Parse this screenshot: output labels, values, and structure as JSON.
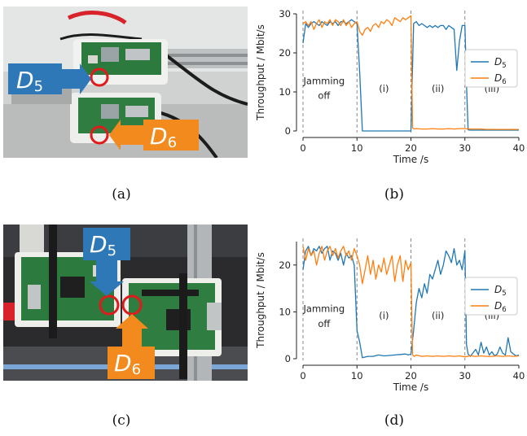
{
  "captions": {
    "a": "(a)",
    "b": "(b)",
    "c": "(c)",
    "d": "(d)"
  },
  "photos": {
    "a": {
      "labels": [
        {
          "base": "D",
          "sub": "5",
          "color": "#2f78b7"
        },
        {
          "base": "D",
          "sub": "6",
          "color": "#f28a1e"
        }
      ]
    },
    "c": {
      "labels": [
        {
          "base": "D",
          "sub": "5",
          "color": "#2f78b7"
        },
        {
          "base": "D",
          "sub": "6",
          "color": "#f28a1e"
        }
      ]
    }
  },
  "colors": {
    "d5": "#1f77b4",
    "d6": "#ff7f0e",
    "marker": "#e01b1b"
  },
  "chart_data": [
    {
      "type": "line",
      "panel": "b",
      "xlabel": "Time /s",
      "ylabel": "Throughput / Mbit/s",
      "xlim": [
        0,
        40
      ],
      "ylim": [
        0,
        30
      ],
      "xticks": [
        0,
        10,
        20,
        30,
        40
      ],
      "yticks": [
        0,
        10,
        20,
        30
      ],
      "vlines": [
        0,
        10,
        20,
        30
      ],
      "annotations": [
        {
          "text": "Jamming",
          "x": 3.9,
          "y": 12.0
        },
        {
          "text": "off",
          "x": 3.9,
          "y": 8.2
        },
        {
          "text": "(i)",
          "x": 15.0,
          "y": 10.0
        },
        {
          "text": "(ii)",
          "x": 25.0,
          "y": 10.0
        },
        {
          "text": "(iii)",
          "x": 35.0,
          "y": 10.0
        }
      ],
      "legend": {
        "position": "right",
        "entries": [
          {
            "base": "D",
            "sub": "5"
          },
          {
            "base": "D",
            "sub": "6"
          }
        ]
      },
      "series": [
        {
          "key": "d5",
          "x": [
            0,
            0.5,
            1,
            1.5,
            2,
            2.5,
            3,
            3.5,
            4,
            4.5,
            5,
            5.5,
            6,
            6.5,
            7,
            7.5,
            8,
            8.5,
            9,
            9.5,
            10,
            10.5,
            11,
            12,
            13,
            14,
            15,
            16,
            17,
            18,
            19,
            19.5,
            20,
            20.5,
            21,
            21.5,
            22,
            22.5,
            23,
            23.5,
            24,
            24.5,
            25,
            25.5,
            26,
            26.5,
            27,
            27.5,
            28,
            28.5,
            29,
            29.5,
            30,
            30.3,
            30.6,
            31,
            32,
            33,
            34,
            35,
            36,
            37,
            38,
            39,
            40
          ],
          "y": [
            22.5,
            27.5,
            26.5,
            27.5,
            28,
            27.5,
            27,
            28,
            27.5,
            27,
            28,
            27.5,
            28,
            27,
            28,
            28,
            27.5,
            28,
            28.5,
            28,
            27.5,
            15,
            0,
            0,
            0,
            0,
            0,
            0,
            0,
            0,
            0,
            0,
            0,
            27.5,
            28,
            27,
            27.5,
            27,
            26.5,
            27,
            26.5,
            27,
            26.5,
            27,
            27,
            26,
            27,
            26.5,
            26,
            15.5,
            23,
            27,
            27,
            12,
            0.3,
            0.2,
            0.2,
            0.2,
            0.2,
            0.2,
            0.2,
            0.2,
            0.2,
            0.2,
            0.2
          ]
        },
        {
          "key": "d6",
          "x": [
            0,
            0.5,
            1,
            1.5,
            2,
            2.5,
            3,
            3.5,
            4,
            4.5,
            5,
            5.5,
            6,
            6.5,
            7,
            7.5,
            8,
            8.5,
            9,
            9.5,
            10,
            10.5,
            11,
            11.5,
            12,
            12.5,
            13,
            13.5,
            14,
            14.5,
            15,
            15.5,
            16,
            16.5,
            17,
            17.5,
            18,
            18.5,
            19,
            19.5,
            20,
            20.3,
            20.6,
            21,
            22,
            23,
            24,
            25,
            26,
            27,
            28,
            29,
            30,
            31,
            32,
            33,
            34,
            35,
            36,
            37,
            38,
            39,
            40
          ],
          "y": [
            27.5,
            28,
            27,
            28,
            26,
            27.5,
            28.5,
            26.5,
            28,
            27.5,
            28.5,
            27,
            28.5,
            28,
            27,
            28.5,
            27,
            28,
            26.5,
            27.5,
            28,
            25.5,
            24.5,
            26,
            26.5,
            25.5,
            27,
            27.5,
            26.5,
            28,
            27.5,
            28.5,
            28,
            27,
            29,
            28.5,
            28,
            29,
            28.5,
            29,
            29.5,
            0.8,
            0.5,
            0.6,
            0.5,
            0.5,
            0.6,
            0.5,
            0.5,
            0.6,
            0.5,
            0.6,
            0.6,
            0.5,
            0.5,
            0.5,
            0.4,
            0.4,
            0.4,
            0.4,
            0.4,
            0.4,
            0.4
          ]
        }
      ]
    },
    {
      "type": "line",
      "panel": "d",
      "xlabel": "Time /s",
      "ylabel": "Throughput / Mbit/s",
      "xlim": [
        0,
        40
      ],
      "ylim": [
        0,
        25
      ],
      "xticks": [
        0,
        10,
        20,
        30,
        40
      ],
      "yticks": [
        0,
        10,
        20
      ],
      "vlines": [
        0,
        10,
        20,
        30
      ],
      "annotations": [
        {
          "text": "Jamming",
          "x": 3.9,
          "y": 10.0
        },
        {
          "text": "off",
          "x": 3.9,
          "y": 6.8
        },
        {
          "text": "(i)",
          "x": 15.0,
          "y": 8.5
        },
        {
          "text": "(ii)",
          "x": 25.0,
          "y": 8.5
        },
        {
          "text": "(iii)",
          "x": 35.0,
          "y": 8.5
        }
      ],
      "legend": {
        "position": "right",
        "entries": [
          {
            "base": "D",
            "sub": "5"
          },
          {
            "base": "D",
            "sub": "6"
          }
        ]
      },
      "series": [
        {
          "key": "d5",
          "x": [
            0,
            0.5,
            1,
            1.5,
            2,
            2.5,
            3,
            3.5,
            4,
            4.5,
            5,
            5.5,
            6,
            6.5,
            7,
            7.5,
            8,
            8.5,
            9,
            9.5,
            10,
            10.5,
            11,
            12,
            13,
            14,
            15,
            16,
            17,
            18,
            19,
            19.5,
            20,
            20.5,
            21,
            21.5,
            22,
            22.5,
            23,
            23.5,
            24,
            24.5,
            25,
            25.5,
            26,
            26.5,
            27,
            27.5,
            28,
            28.5,
            29,
            29.5,
            30,
            30.3,
            30.6,
            31,
            32,
            32.5,
            33,
            33.5,
            34,
            34.5,
            35,
            35.5,
            36,
            36.5,
            37,
            37.5,
            38,
            38.5,
            39,
            39.5,
            40
          ],
          "y": [
            19,
            23,
            24,
            22,
            23.5,
            23,
            24,
            22.5,
            23.5,
            24,
            21,
            23,
            22.5,
            21,
            22.5,
            20,
            22.5,
            21.5,
            22,
            20,
            6,
            3.5,
            0.2,
            0.5,
            0.5,
            0.8,
            0.6,
            0.7,
            0.8,
            0.9,
            1.0,
            0.8,
            1.0,
            6,
            12,
            15,
            13,
            16,
            14,
            18,
            17,
            19,
            21,
            18,
            20,
            23,
            22,
            20.5,
            23.5,
            20,
            21,
            19,
            23,
            3,
            1.0,
            0.5,
            2.0,
            0.8,
            3.5,
            1.2,
            2.5,
            0.8,
            1.5,
            0.6,
            1.0,
            2.5,
            1.2,
            0.8,
            4.5,
            1.5,
            1.0,
            0.6,
            0.8
          ]
        },
        {
          "key": "d6",
          "x": [
            0,
            0.5,
            1,
            1.5,
            2,
            2.5,
            3,
            3.5,
            4,
            4.5,
            5,
            5.5,
            6,
            6.5,
            7,
            7.5,
            8,
            8.5,
            9,
            9.5,
            10,
            10.5,
            11,
            11.5,
            12,
            12.5,
            13,
            13.5,
            14,
            14.5,
            15,
            15.5,
            16,
            16.5,
            17,
            17.5,
            18,
            18.5,
            19,
            19.5,
            20,
            20.3,
            20.6,
            21,
            22,
            23,
            24,
            25,
            26,
            27,
            28,
            29,
            30,
            31,
            32,
            33,
            34,
            35,
            36,
            37,
            38,
            39,
            40
          ],
          "y": [
            24,
            21,
            23.5,
            22,
            23,
            20,
            22.5,
            24,
            21,
            23,
            24,
            22,
            23.5,
            21.5,
            23,
            24,
            22,
            23,
            21,
            23.5,
            22,
            20,
            16,
            19,
            22,
            18,
            21,
            17,
            20,
            18.5,
            21.5,
            18,
            20,
            22,
            16.5,
            20,
            22,
            16.5,
            21,
            19,
            20.5,
            0.8,
            0.5,
            0.8,
            0.5,
            0.6,
            0.5,
            0.6,
            0.5,
            0.6,
            0.5,
            0.6,
            0.4,
            0.6,
            0.5,
            0.6,
            0.5,
            0.5,
            0.6,
            0.5,
            0.6,
            0.5,
            0.6
          ]
        }
      ]
    }
  ]
}
